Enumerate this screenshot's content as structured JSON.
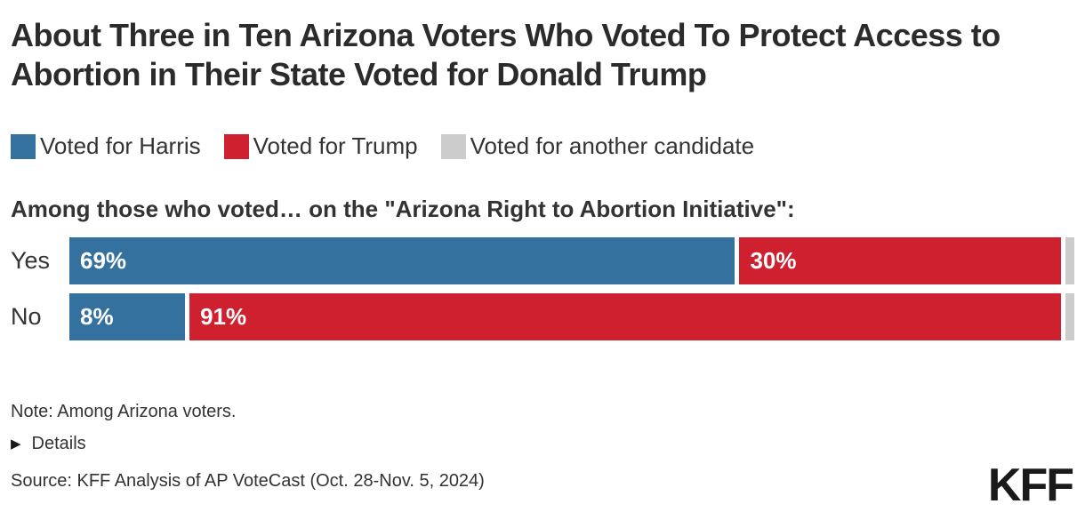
{
  "title": "About Three in Ten Arizona Voters Who Voted To Protect Access to Abortion in Their State Voted for Donald Trump",
  "legend": {
    "items": [
      {
        "label": "Voted for Harris",
        "color": "#35719F"
      },
      {
        "label": "Voted for Trump",
        "color": "#CE202F"
      },
      {
        "label": "Voted for another candidate",
        "color": "#CCCCCC"
      }
    ]
  },
  "subtitle": "Among those who voted… on the \"Arizona Right to Abortion Initiative\":",
  "chart_data": {
    "type": "bar",
    "orientation": "horizontal",
    "stacked": true,
    "categories": [
      "Yes",
      "No"
    ],
    "series": [
      {
        "name": "Voted for Harris",
        "color": "#35719F",
        "values": [
          69,
          8
        ]
      },
      {
        "name": "Voted for Trump",
        "color": "#CE202F",
        "values": [
          30,
          91
        ]
      },
      {
        "name": "Voted for another candidate",
        "color": "#CCCCCC",
        "values": [
          1,
          1
        ]
      }
    ],
    "value_labels": [
      [
        "69%",
        "30%",
        ""
      ],
      [
        "8%",
        "91%",
        ""
      ]
    ],
    "xlim": [
      0,
      100
    ],
    "legend_position": "top",
    "grid": false
  },
  "note": "Note: Among Arizona voters.",
  "details": {
    "icon_glyph": "▶",
    "label": "Details"
  },
  "source": "Source: KFF Analysis of AP VoteCast (Oct. 28-Nov. 5, 2024)",
  "logo": "KFF"
}
